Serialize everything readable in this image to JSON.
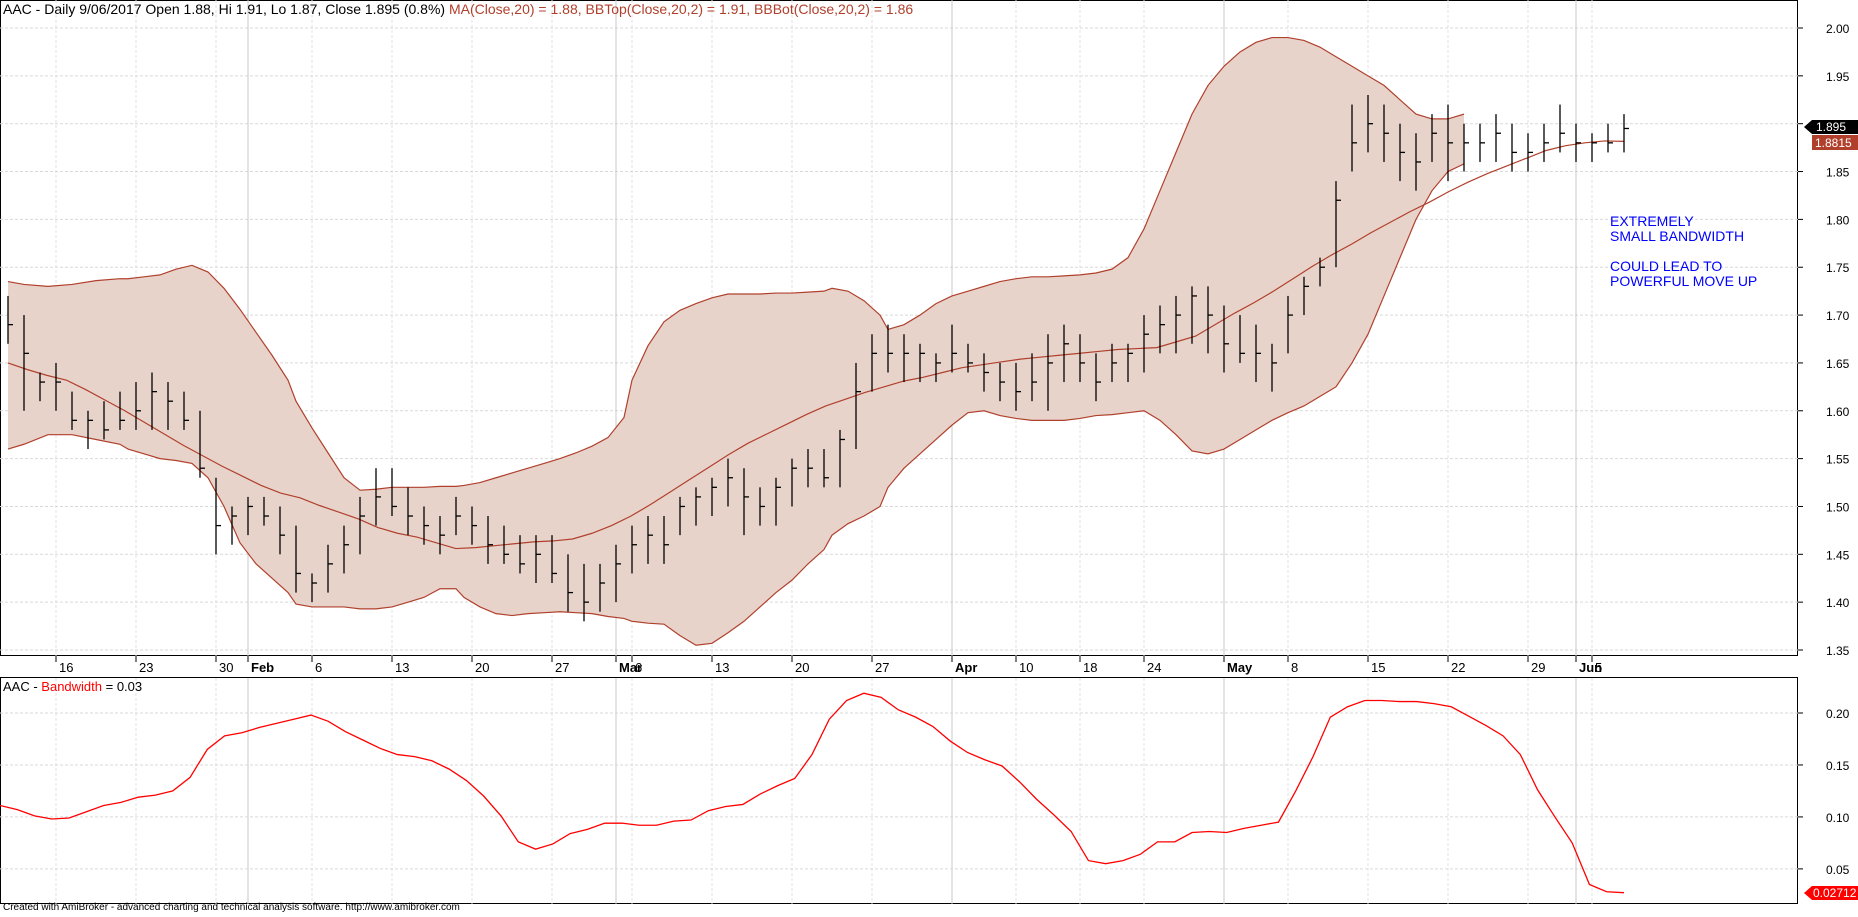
{
  "header": {
    "symbol": "AAC",
    "prefix": " - Daily 9/06/2017 Open 1.88, Hi 1.91, Lo 1.87, Close 1.895 (0.8%) ",
    "ma_text": "MA(Close,20) = 1.88, ",
    "bbtop_text": "BBTop(Close,20,2) = 1.91, ",
    "bbbot_text": "BBBot(Close,20,2) = 1.86"
  },
  "lower_header": {
    "symbol": "AAC",
    "sep": " - ",
    "name": "Bandwidth",
    "value_text": " = 0.03"
  },
  "annotation": {
    "line1": "EXTREMELY",
    "line2": "SMALL BANDWIDTH",
    "line3": "COULD LEAD TO",
    "line4": "POWERFUL MOVE UP"
  },
  "price_labels": {
    "close": "1.895",
    "ma": "1.8815",
    "bandwidth": "0.02712"
  },
  "footer": "Created with AmiBroker - advanced charting and technical analysis software. http://www.amibroker.com",
  "colors": {
    "band_fill": "#e8d3cb",
    "band_line": "#b0402c",
    "bars": "#000000",
    "bandwidth_line": "#ff0000",
    "annotation": "#0000ff",
    "close_label_bg": "#000000",
    "ma_label_bg": "#b0402c",
    "bw_label_bg": "#ff0000"
  },
  "chart_data": [
    {
      "type": "ohlc",
      "title": "AAC - Daily 9/06/2017",
      "y_ticks": [
        "1.35",
        "1.40",
        "1.45",
        "1.50",
        "1.55",
        "1.60",
        "1.65",
        "1.70",
        "1.75",
        "1.80",
        "1.85",
        "1.90",
        "1.95",
        "2.00"
      ],
      "ylim": [
        1.35,
        2.0
      ],
      "x_tick_labels": [
        {
          "i": 3,
          "label": "16",
          "bold": false
        },
        {
          "i": 8,
          "label": "23",
          "bold": false
        },
        {
          "i": 13,
          "label": "30",
          "bold": false
        },
        {
          "i": 15,
          "label": "Feb",
          "bold": true
        },
        {
          "i": 19,
          "label": "6",
          "bold": false
        },
        {
          "i": 24,
          "label": "13",
          "bold": false
        },
        {
          "i": 29,
          "label": "20",
          "bold": false
        },
        {
          "i": 34,
          "label": "27",
          "bold": false
        },
        {
          "i": 38,
          "label": "Mar",
          "bold": true
        },
        {
          "i": 39,
          "label": "6",
          "bold": false
        },
        {
          "i": 44,
          "label": "13",
          "bold": false
        },
        {
          "i": 49,
          "label": "20",
          "bold": false
        },
        {
          "i": 54,
          "label": "27",
          "bold": false
        },
        {
          "i": 59,
          "label": "Apr",
          "bold": true
        },
        {
          "i": 63,
          "label": "10",
          "bold": false
        },
        {
          "i": 67,
          "label": "18",
          "bold": false
        },
        {
          "i": 71,
          "label": "24",
          "bold": false
        },
        {
          "i": 76,
          "label": "May",
          "bold": true
        },
        {
          "i": 80,
          "label": "8",
          "bold": false
        },
        {
          "i": 85,
          "label": "15",
          "bold": false
        },
        {
          "i": 90,
          "label": "22",
          "bold": false
        },
        {
          "i": 95,
          "label": "29",
          "bold": false
        },
        {
          "i": 98,
          "label": "Jun",
          "bold": true
        },
        {
          "i": 99,
          "label": "5",
          "bold": false
        }
      ],
      "ohlc": [
        [
          1.72,
          1.67,
          1.69
        ],
        [
          1.7,
          1.6,
          1.66
        ],
        [
          1.64,
          1.61,
          1.63
        ],
        [
          1.65,
          1.6,
          1.63
        ],
        [
          1.62,
          1.58,
          1.59
        ],
        [
          1.6,
          1.56,
          1.59
        ],
        [
          1.61,
          1.57,
          1.58
        ],
        [
          1.62,
          1.58,
          1.59
        ],
        [
          1.63,
          1.58,
          1.6
        ],
        [
          1.64,
          1.58,
          1.62
        ],
        [
          1.63,
          1.58,
          1.61
        ],
        [
          1.62,
          1.58,
          1.59
        ],
        [
          1.6,
          1.53,
          1.54
        ],
        [
          1.53,
          1.45,
          1.48
        ],
        [
          1.5,
          1.46,
          1.49
        ],
        [
          1.51,
          1.47,
          1.5
        ],
        [
          1.51,
          1.48,
          1.49
        ],
        [
          1.5,
          1.45,
          1.47
        ],
        [
          1.48,
          1.41,
          1.43
        ],
        [
          1.43,
          1.4,
          1.42
        ],
        [
          1.46,
          1.41,
          1.44
        ],
        [
          1.48,
          1.43,
          1.46
        ],
        [
          1.51,
          1.45,
          1.49
        ],
        [
          1.54,
          1.48,
          1.51
        ],
        [
          1.54,
          1.49,
          1.5
        ],
        [
          1.52,
          1.47,
          1.49
        ],
        [
          1.5,
          1.46,
          1.48
        ],
        [
          1.49,
          1.45,
          1.47
        ],
        [
          1.51,
          1.47,
          1.49
        ],
        [
          1.5,
          1.46,
          1.48
        ],
        [
          1.49,
          1.44,
          1.46
        ],
        [
          1.48,
          1.44,
          1.45
        ],
        [
          1.47,
          1.43,
          1.44
        ],
        [
          1.47,
          1.42,
          1.45
        ],
        [
          1.47,
          1.42,
          1.43
        ],
        [
          1.45,
          1.39,
          1.41
        ],
        [
          1.44,
          1.38,
          1.4
        ],
        [
          1.44,
          1.39,
          1.42
        ],
        [
          1.46,
          1.4,
          1.44
        ],
        [
          1.48,
          1.43,
          1.46
        ],
        [
          1.49,
          1.44,
          1.47
        ],
        [
          1.49,
          1.44,
          1.46
        ],
        [
          1.51,
          1.47,
          1.5
        ],
        [
          1.52,
          1.48,
          1.51
        ],
        [
          1.53,
          1.49,
          1.52
        ],
        [
          1.55,
          1.5,
          1.53
        ],
        [
          1.54,
          1.47,
          1.51
        ],
        [
          1.52,
          1.48,
          1.5
        ],
        [
          1.53,
          1.48,
          1.52
        ],
        [
          1.55,
          1.5,
          1.54
        ],
        [
          1.56,
          1.52,
          1.54
        ],
        [
          1.56,
          1.52,
          1.53
        ],
        [
          1.58,
          1.52,
          1.57
        ],
        [
          1.65,
          1.56,
          1.62
        ],
        [
          1.68,
          1.62,
          1.66
        ],
        [
          1.69,
          1.64,
          1.66
        ],
        [
          1.68,
          1.63,
          1.66
        ],
        [
          1.67,
          1.63,
          1.66
        ],
        [
          1.66,
          1.63,
          1.65
        ],
        [
          1.69,
          1.64,
          1.66
        ],
        [
          1.67,
          1.64,
          1.65
        ],
        [
          1.66,
          1.62,
          1.64
        ],
        [
          1.65,
          1.61,
          1.63
        ],
        [
          1.65,
          1.6,
          1.62
        ],
        [
          1.66,
          1.61,
          1.63
        ],
        [
          1.68,
          1.6,
          1.65
        ],
        [
          1.69,
          1.63,
          1.67
        ],
        [
          1.68,
          1.63,
          1.65
        ],
        [
          1.66,
          1.61,
          1.63
        ],
        [
          1.67,
          1.63,
          1.65
        ],
        [
          1.67,
          1.63,
          1.66
        ],
        [
          1.7,
          1.64,
          1.68
        ],
        [
          1.71,
          1.66,
          1.69
        ],
        [
          1.72,
          1.66,
          1.7
        ],
        [
          1.73,
          1.67,
          1.72
        ],
        [
          1.73,
          1.66,
          1.7
        ],
        [
          1.71,
          1.64,
          1.67
        ],
        [
          1.7,
          1.65,
          1.66
        ],
        [
          1.69,
          1.63,
          1.66
        ],
        [
          1.67,
          1.62,
          1.65
        ],
        [
          1.72,
          1.66,
          1.7
        ],
        [
          1.74,
          1.7,
          1.73
        ],
        [
          1.76,
          1.73,
          1.75
        ],
        [
          1.84,
          1.75,
          1.82
        ],
        [
          1.92,
          1.85,
          1.88
        ],
        [
          1.93,
          1.87,
          1.9
        ],
        [
          1.92,
          1.86,
          1.89
        ],
        [
          1.9,
          1.84,
          1.87
        ],
        [
          1.89,
          1.83,
          1.86
        ],
        [
          1.91,
          1.86,
          1.89
        ],
        [
          1.92,
          1.84,
          1.88
        ],
        [
          1.9,
          1.85,
          1.88
        ],
        [
          1.9,
          1.86,
          1.88
        ],
        [
          1.91,
          1.86,
          1.89
        ],
        [
          1.9,
          1.85,
          1.87
        ],
        [
          1.89,
          1.85,
          1.87
        ],
        [
          1.9,
          1.86,
          1.88
        ],
        [
          1.92,
          1.87,
          1.89
        ],
        [
          1.9,
          1.86,
          1.88
        ],
        [
          1.89,
          1.86,
          1.88
        ],
        [
          1.9,
          1.87,
          1.88
        ],
        [
          1.91,
          1.87,
          1.895
        ]
      ],
      "ma": [
        1.65,
        1.643,
        1.637,
        1.632,
        1.622,
        1.611,
        1.6,
        1.588,
        1.576,
        1.564,
        1.553,
        1.542,
        1.532,
        1.522,
        1.514,
        1.509,
        1.501,
        1.494,
        1.487,
        1.478,
        1.472,
        1.468,
        1.462,
        1.456,
        1.457,
        1.459,
        1.461,
        1.463,
        1.464,
        1.466,
        1.472,
        1.48,
        1.49,
        1.502,
        1.515,
        1.528,
        1.541,
        1.554,
        1.566,
        1.576,
        1.586,
        1.596,
        1.605,
        1.612,
        1.619,
        1.625,
        1.631,
        1.635,
        1.64,
        1.645,
        1.648,
        1.651,
        1.654,
        1.656,
        1.658,
        1.66,
        1.662,
        1.664,
        1.665,
        1.666,
        1.672,
        1.678,
        1.69,
        1.702,
        1.713,
        1.725,
        1.738,
        1.751,
        1.763,
        1.774,
        1.786,
        1.797,
        1.808,
        1.818,
        1.829,
        1.839,
        1.848,
        1.856,
        1.864,
        1.872,
        1.877,
        1.88,
        1.882,
        1.8815
      ],
      "bb_top": [
        1.735,
        1.732,
        1.73,
        1.732,
        1.736,
        1.738,
        1.738,
        1.74,
        1.742,
        1.748,
        1.752,
        1.745,
        1.728,
        1.706,
        1.682,
        1.658,
        1.632,
        1.61,
        1.582,
        1.556,
        1.53,
        1.517,
        1.518,
        1.52,
        1.52,
        1.52,
        1.521,
        1.521,
        1.522,
        1.525,
        1.53,
        1.535,
        1.54,
        1.545,
        1.55,
        1.556,
        1.563,
        1.572,
        1.593,
        1.632,
        1.668,
        1.693,
        1.705,
        1.712,
        1.718,
        1.722,
        1.722,
        1.722,
        1.723,
        1.723,
        1.724,
        1.725,
        1.728,
        1.725,
        1.715,
        1.7,
        1.685,
        1.69,
        1.7,
        1.712,
        1.72,
        1.725,
        1.73,
        1.735,
        1.738,
        1.74,
        1.74,
        1.741,
        1.742,
        1.744,
        1.748,
        1.76,
        1.79,
        1.83,
        1.87,
        1.91,
        1.94,
        1.96,
        1.975,
        1.985,
        1.99,
        1.99,
        1.987,
        1.98,
        1.97,
        1.96,
        1.95,
        1.94,
        1.925,
        1.91,
        1.905,
        1.905,
        1.91
      ],
      "bb_bot": [
        1.56,
        1.565,
        1.575,
        1.575,
        1.57,
        1.565,
        1.56,
        1.555,
        1.55,
        1.548,
        1.545,
        1.53,
        1.5,
        1.462,
        1.44,
        1.425,
        1.41,
        1.398,
        1.395,
        1.395,
        1.395,
        1.393,
        1.393,
        1.395,
        1.4,
        1.405,
        1.414,
        1.414,
        1.405,
        1.395,
        1.388,
        1.386,
        1.388,
        1.389,
        1.39,
        1.389,
        1.388,
        1.385,
        1.383,
        1.38,
        1.378,
        1.377,
        1.365,
        1.355,
        1.357,
        1.368,
        1.38,
        1.395,
        1.41,
        1.423,
        1.44,
        1.455,
        1.47,
        1.482,
        1.49,
        1.5,
        1.52,
        1.54,
        1.555,
        1.57,
        1.585,
        1.598,
        1.6,
        1.595,
        1.592,
        1.59,
        1.59,
        1.59,
        1.592,
        1.595,
        1.596,
        1.598,
        1.6,
        1.59,
        1.575,
        1.558,
        1.555,
        1.56,
        1.57,
        1.58,
        1.59,
        1.598,
        1.605,
        1.615,
        1.625,
        1.65,
        1.68,
        1.72,
        1.76,
        1.8,
        1.83,
        1.85,
        1.858
      ],
      "bb_top_x": [
        0,
        2,
        5,
        8,
        11,
        14,
        15,
        17,
        19,
        21,
        23,
        25,
        27,
        29,
        31,
        33,
        35,
        36,
        38,
        40,
        42,
        44,
        46,
        48,
        50,
        52,
        54,
        56,
        57,
        59,
        61,
        63,
        65,
        67,
        69,
        71,
        73,
        75,
        77,
        78,
        80,
        82,
        84,
        86,
        88,
        90,
        92,
        94,
        96,
        98,
        100,
        102,
        103,
        105,
        107,
        109,
        110,
        112,
        114,
        116,
        118,
        120,
        122,
        124,
        126,
        128,
        130,
        132,
        134,
        136,
        138,
        140,
        142,
        144,
        146,
        148,
        150,
        152,
        154,
        156,
        158,
        160,
        162,
        164,
        166,
        168,
        170,
        172,
        174,
        176,
        178,
        180,
        182
      ],
      "bb_bot_x": [
        0,
        2,
        5,
        8,
        11,
        14,
        15,
        17,
        19,
        21,
        23,
        25,
        27,
        29,
        31,
        33,
        35,
        36,
        38,
        40,
        42,
        44,
        46,
        48,
        50,
        52,
        54,
        56,
        57,
        59,
        61,
        63,
        65,
        67,
        69,
        71,
        73,
        75,
        77,
        78,
        80,
        82,
        84,
        86,
        88,
        90,
        92,
        94,
        96,
        98,
        100,
        102,
        103,
        105,
        107,
        109,
        110,
        112,
        114,
        116,
        118,
        120,
        122,
        124,
        126,
        128,
        130,
        132,
        134,
        136,
        138,
        140,
        142,
        144,
        146,
        148,
        150,
        152,
        154,
        156,
        158,
        160,
        162,
        164,
        166,
        168,
        170,
        172,
        174,
        176,
        178,
        180,
        182
      ]
    },
    {
      "type": "line",
      "title": "AAC - Bandwidth",
      "y_ticks": [
        "0.05",
        "0.10",
        "0.15",
        "0.20"
      ],
      "ylim": [
        0.022,
        0.225
      ],
      "values": [
        0.111,
        0.107,
        0.101,
        0.098,
        0.099,
        0.105,
        0.111,
        0.114,
        0.119,
        0.121,
        0.125,
        0.138,
        0.165,
        0.178,
        0.181,
        0.186,
        0.19,
        0.194,
        0.198,
        0.192,
        0.182,
        0.174,
        0.166,
        0.16,
        0.158,
        0.154,
        0.146,
        0.135,
        0.12,
        0.101,
        0.076,
        0.069,
        0.074,
        0.084,
        0.088,
        0.094,
        0.094,
        0.092,
        0.092,
        0.096,
        0.097,
        0.106,
        0.11,
        0.112,
        0.122,
        0.13,
        0.137,
        0.16,
        0.194,
        0.212,
        0.219,
        0.215,
        0.203,
        0.196,
        0.187,
        0.173,
        0.162,
        0.155,
        0.149,
        0.134,
        0.117,
        0.102,
        0.086,
        0.058,
        0.055,
        0.058,
        0.064,
        0.076,
        0.076,
        0.085,
        0.086,
        0.085,
        0.089,
        0.092,
        0.095,
        0.125,
        0.158,
        0.196,
        0.206,
        0.212,
        0.212,
        0.211,
        0.211,
        0.209,
        0.206,
        0.197,
        0.188,
        0.178,
        0.16,
        0.126,
        0.1,
        0.075,
        0.035,
        0.028,
        0.02712
      ]
    }
  ]
}
